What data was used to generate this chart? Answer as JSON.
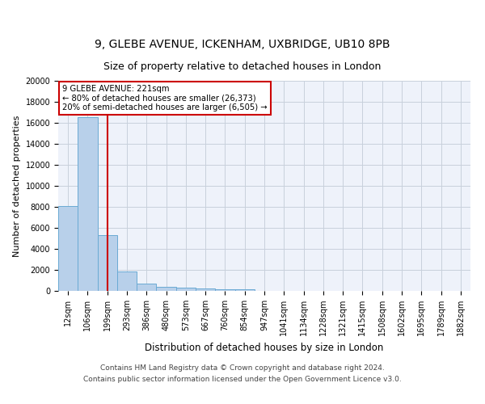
{
  "title1": "9, GLEBE AVENUE, ICKENHAM, UXBRIDGE, UB10 8PB",
  "title2": "Size of property relative to detached houses in London",
  "xlabel": "Distribution of detached houses by size in London",
  "ylabel": "Number of detached properties",
  "categories": [
    "12sqm",
    "106sqm",
    "199sqm",
    "293sqm",
    "386sqm",
    "480sqm",
    "573sqm",
    "667sqm",
    "760sqm",
    "854sqm",
    "947sqm",
    "1041sqm",
    "1134sqm",
    "1228sqm",
    "1321sqm",
    "1415sqm",
    "1508sqm",
    "1602sqm",
    "1695sqm",
    "1789sqm",
    "1882sqm"
  ],
  "values": [
    8100,
    16500,
    5300,
    1850,
    700,
    350,
    270,
    200,
    180,
    130,
    0,
    0,
    0,
    0,
    0,
    0,
    0,
    0,
    0,
    0,
    0
  ],
  "bar_color": "#b8d0ea",
  "bar_edge_color": "#6aaad4",
  "vline_x": 2.0,
  "vline_color": "#cc0000",
  "annotation_text": "9 GLEBE AVENUE: 221sqm\n← 80% of detached houses are smaller (26,373)\n20% of semi-detached houses are larger (6,505) →",
  "annotation_box_color": "#cc0000",
  "ylim": [
    0,
    20000
  ],
  "yticks": [
    0,
    2000,
    4000,
    6000,
    8000,
    10000,
    12000,
    14000,
    16000,
    18000,
    20000
  ],
  "grid_color": "#c8d0dc",
  "background_color": "#eef2fa",
  "footer_text": "Contains HM Land Registry data © Crown copyright and database right 2024.\nContains public sector information licensed under the Open Government Licence v3.0.",
  "title1_fontsize": 10,
  "title2_fontsize": 9,
  "xlabel_fontsize": 8.5,
  "ylabel_fontsize": 8,
  "tick_fontsize": 7,
  "footer_fontsize": 6.5
}
